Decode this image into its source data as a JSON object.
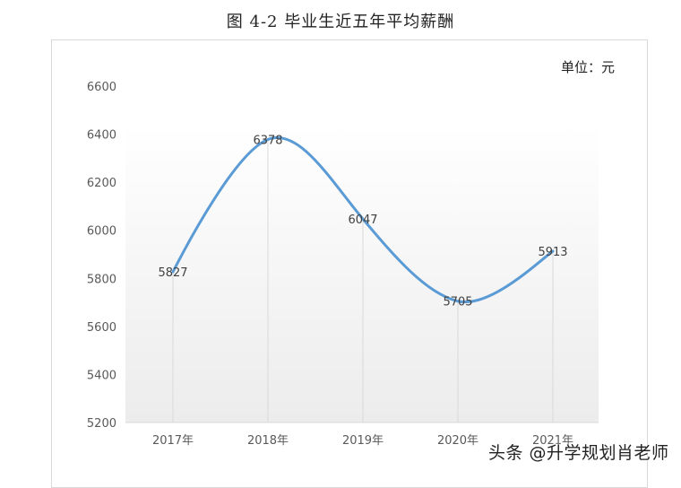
{
  "figure": {
    "title": "图 4-2 毕业生近五年平均薪酬",
    "unit_label": "单位：元",
    "watermark": "头条 @升学规划肖老师"
  },
  "colors": {
    "line": "#5b9bd5",
    "gridline": "#d9d9d9",
    "plot_bg_top": "#ffffff",
    "plot_bg_bottom": "#eeeeee"
  },
  "chart_data": {
    "type": "line",
    "title": "图 4-2 毕业生近五年平均薪酬",
    "subtitle": "单位：元",
    "categories": [
      "2017年",
      "2018年",
      "2019年",
      "2020年",
      "2021年"
    ],
    "series": [
      {
        "name": "平均薪酬",
        "values": [
          5827,
          6378,
          6047,
          5705,
          5913
        ]
      }
    ],
    "data_labels": [
      "5827",
      "6378",
      "6047",
      "5705",
      "5913"
    ],
    "xlabel": "",
    "ylabel": "",
    "ylim": [
      5200,
      6600
    ],
    "yticks": [
      "6600",
      "6400",
      "6200",
      "6000",
      "5800",
      "5600",
      "5400",
      "5200"
    ],
    "smooth": true,
    "grid": "vertical drop lines at categories",
    "legend": "none"
  }
}
